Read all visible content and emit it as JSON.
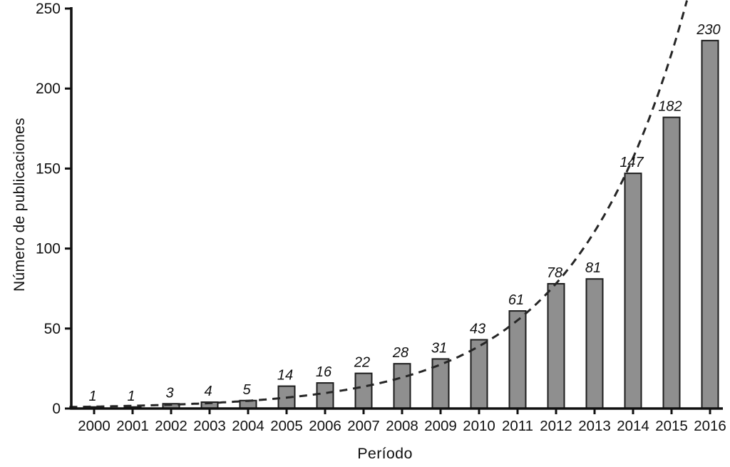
{
  "chart_data": {
    "type": "bar",
    "title": "",
    "xlabel": "Período",
    "ylabel": "Número de publicaciones",
    "categories": [
      "2000",
      "2001",
      "2002",
      "2003",
      "2004",
      "2005",
      "2006",
      "2007",
      "2008",
      "2009",
      "2010",
      "2011",
      "2012",
      "2013",
      "2014",
      "2015",
      "2016"
    ],
    "values": [
      1,
      1,
      3,
      4,
      5,
      14,
      16,
      22,
      28,
      31,
      43,
      61,
      78,
      81,
      147,
      182,
      230
    ],
    "value_labels": [
      "1",
      "1",
      "3",
      "4",
      "5",
      "14",
      "16",
      "22",
      "28",
      "31",
      "43",
      "61",
      "78",
      "81",
      "147",
      "182",
      "230"
    ],
    "y_ticks": [
      0,
      50,
      100,
      150,
      200,
      250
    ],
    "ylim": [
      0,
      250
    ],
    "grid": false,
    "legend": null,
    "trendline": {
      "type": "exponential",
      "style": "dashed",
      "a": 1.2,
      "b": 0.348
    },
    "colors": {
      "bar_fill": "#8f8f8f",
      "bar_stroke": "#1c1c1c",
      "axis": "#111111",
      "trend": "#262626",
      "text": "#111111"
    }
  }
}
